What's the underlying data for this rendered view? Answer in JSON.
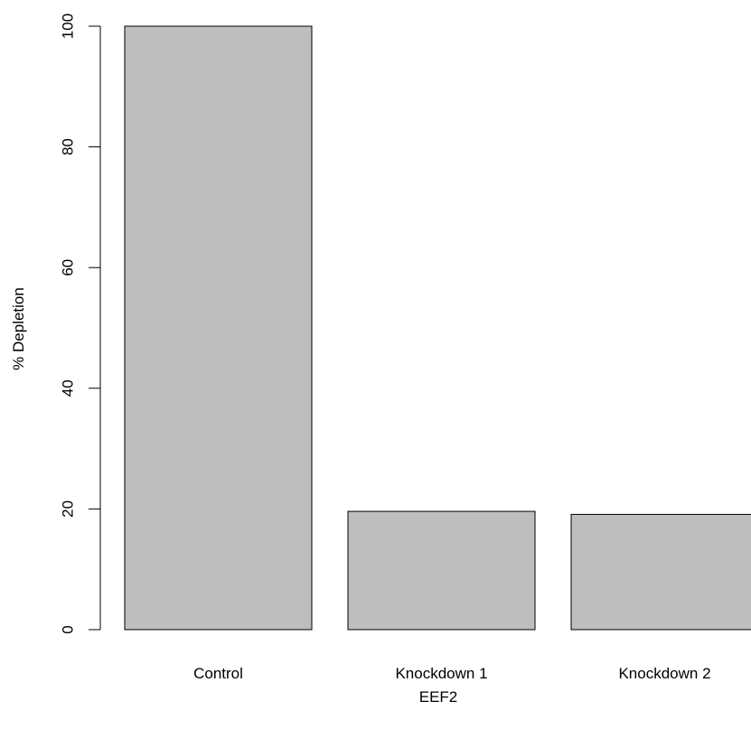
{
  "chart_data": {
    "type": "bar",
    "categories": [
      "Control",
      "Knockdown 1",
      "Knockdown 2"
    ],
    "values": [
      100,
      19.6,
      19.1
    ],
    "xlabel": "EEF2",
    "ylabel": "% Depletion",
    "ylim": [
      0,
      100
    ],
    "yticks": [
      0,
      20,
      40,
      60,
      80,
      100
    ],
    "bar_fill": "#bebebe",
    "bar_stroke": "#000000",
    "grid": false,
    "legend": "none"
  }
}
